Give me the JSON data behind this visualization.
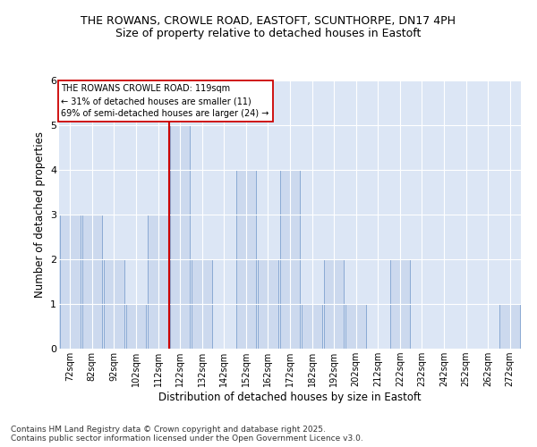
{
  "title1": "THE ROWANS, CROWLE ROAD, EASTOFT, SCUNTHORPE, DN17 4PH",
  "title2": "Size of property relative to detached houses in Eastoft",
  "xlabel": "Distribution of detached houses by size in Eastoft",
  "ylabel": "Number of detached properties",
  "footer1": "Contains HM Land Registry data © Crown copyright and database right 2025.",
  "footer2": "Contains public sector information licensed under the Open Government Licence v3.0.",
  "bins": [
    72,
    82,
    92,
    102,
    112,
    122,
    132,
    142,
    152,
    162,
    172,
    182,
    192,
    202,
    212,
    222,
    232,
    242,
    252,
    262,
    272
  ],
  "counts": [
    3,
    3,
    2,
    1,
    3,
    5,
    2,
    0,
    4,
    2,
    4,
    1,
    2,
    1,
    0,
    2,
    0,
    0,
    0,
    0,
    1
  ],
  "property_size": 119,
  "red_line_x": 122,
  "annotation_line1": "THE ROWANS CROWLE ROAD: 119sqm",
  "annotation_line2": "← 31% of detached houses are smaller (11)",
  "annotation_line3": "69% of semi-detached houses are larger (24) →",
  "bar_color": "#ccd9ee",
  "bar_edge_color": "#8aaad4",
  "highlight_line_color": "#cc0000",
  "annotation_box_edge": "#cc0000",
  "background_color": "#dce6f5",
  "grid_color": "#ffffff",
  "ylim": [
    0,
    6
  ],
  "yticks": [
    0,
    1,
    2,
    3,
    4,
    5,
    6
  ],
  "bin_width": 10
}
